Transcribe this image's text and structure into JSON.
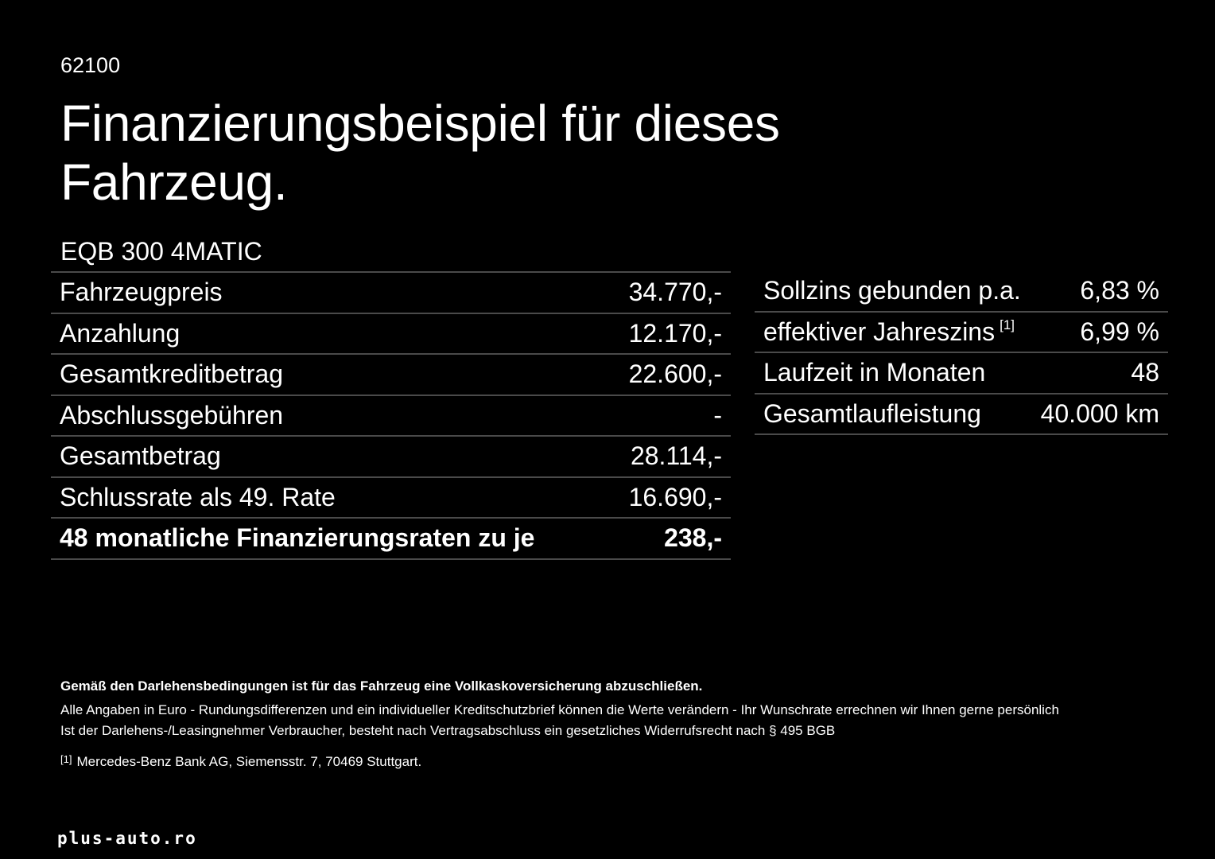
{
  "code": "62100",
  "title": "Finanzierungsbeispiel für dieses Fahrzeug.",
  "model": "EQB 300 4MATIC",
  "left_table": [
    {
      "label": "Fahrzeugpreis",
      "value": "34.770,-"
    },
    {
      "label": "Anzahlung",
      "value": "12.170,-"
    },
    {
      "label": "Gesamtkreditbetrag",
      "value": "22.600,-"
    },
    {
      "label": "Abschlussgebühren",
      "value": "-"
    },
    {
      "label": "Gesamtbetrag",
      "value": "28.114,-"
    },
    {
      "label": "Schlussrate als 49. Rate",
      "value": "16.690,-"
    },
    {
      "label": "48 monatliche Finanzierungsraten zu je",
      "value": "238,-"
    }
  ],
  "right_table": [
    {
      "label": "Sollzins gebunden p.a.",
      "value": "6,83 %"
    },
    {
      "label": "effektiver Jahreszins",
      "sup": "[1]",
      "value": "6,99 %"
    },
    {
      "label": "Laufzeit in Monaten",
      "value": "48"
    },
    {
      "label": "Gesamtlaufleistung",
      "value": "40.000 km"
    }
  ],
  "notes": {
    "insurance": "Gemäß den Darlehensbedingungen ist für das Fahrzeug eine Vollkaskoversicherung abzuschließen.",
    "line1": "Alle Angaben in Euro - Rundungsdifferenzen und ein individueller Kreditschutzbrief können die Werte verändern - Ihr Wunschrate errechnen wir Ihnen gerne persönlich",
    "line2": "Ist der Darlehens-/Leasingnehmer Verbraucher, besteht nach Vertragsabschluss ein gesetzliches Widerrufsrecht nach § 495 BGB",
    "footnote_mark": "[1]",
    "footnote": "Mercedes-Benz Bank AG, Siemensstr. 7, 70469 Stuttgart."
  },
  "brand": "plus-auto.ro"
}
